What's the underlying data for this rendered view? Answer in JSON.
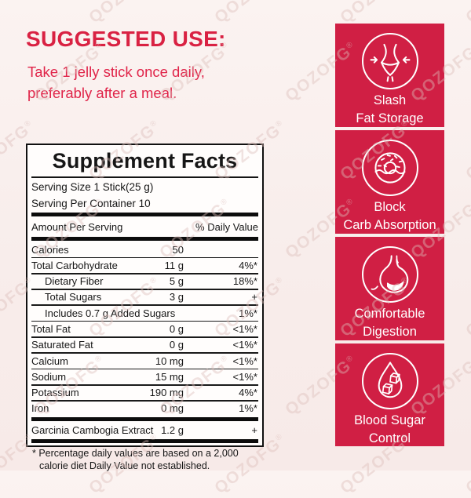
{
  "page": {
    "background": "#f8edeb"
  },
  "watermark": {
    "text": "QOZOFG",
    "color": "#ddbeba"
  },
  "suggested_use": {
    "heading": "SUGGESTED USE:",
    "line1": "Take 1 jelly stick once daily,",
    "line2": "preferably after a meal.",
    "text_color": "#d92243"
  },
  "supplement_facts": {
    "title": "Supplement Facts",
    "serving_size": "Serving Size 1 Stick(25 g)",
    "servings_per_container": "Serving Per Container 10",
    "column_header_left": "Amount Per Serving",
    "column_header_right": "% Daily Value",
    "rows": [
      {
        "name": "Calories",
        "amount": "50",
        "dv": "",
        "indent": false,
        "sep": "line"
      },
      {
        "name": "Total Carbohydrate",
        "amount": "11 g",
        "dv": "4%*",
        "indent": false,
        "sep": "line"
      },
      {
        "name": "Dietary Fiber",
        "amount": "5 g",
        "dv": "18%*",
        "indent": true,
        "sep": "line"
      },
      {
        "name": "Total Sugars",
        "amount": "3 g",
        "dv": "+",
        "indent": true,
        "sep": "line"
      },
      {
        "name": "Includes 0.7 g Added Sugars",
        "amount": "",
        "dv": "1%*",
        "indent": true,
        "sep": "line"
      },
      {
        "name": "Total Fat",
        "amount": "0 g",
        "dv": "<1%*",
        "indent": false,
        "sep": "line"
      },
      {
        "name": "Saturated Fat",
        "amount": "0 g",
        "dv": "<1%*",
        "indent": false,
        "sep": "line"
      },
      {
        "name": "Calcium",
        "amount": "10 mg",
        "dv": "<1%*",
        "indent": false,
        "sep": "line"
      },
      {
        "name": "Sodium",
        "amount": "15 mg",
        "dv": "<1%*",
        "indent": false,
        "sep": "line"
      },
      {
        "name": "Potassium",
        "amount": "190 mg",
        "dv": "4%*",
        "indent": false,
        "sep": "line"
      },
      {
        "name": "Iron",
        "amount": "0 mg",
        "dv": "1%*",
        "indent": false,
        "sep": "bar"
      },
      {
        "name": "Garcinia Cambogia Extract",
        "amount": "1.2 g",
        "dv": "+",
        "indent": false,
        "sep": "bar"
      }
    ],
    "footnote_line1": "* Percentage daily values are based on a 2,000",
    "footnote_line2": "calorie diet Daily Value not established."
  },
  "benefits": {
    "accent_color": "#d01f44",
    "items": [
      {
        "icon": "slim-waist-icon",
        "line1": "Slash",
        "line2": "Fat Storage"
      },
      {
        "icon": "donut-icon",
        "line1": "Block",
        "line2": "Carb Absorption"
      },
      {
        "icon": "stomach-icon",
        "line1": "Comfortable",
        "line2": "Digestion"
      },
      {
        "icon": "blood-drop-sugar-icon",
        "line1": "Blood Sugar",
        "line2": "Control"
      }
    ]
  }
}
